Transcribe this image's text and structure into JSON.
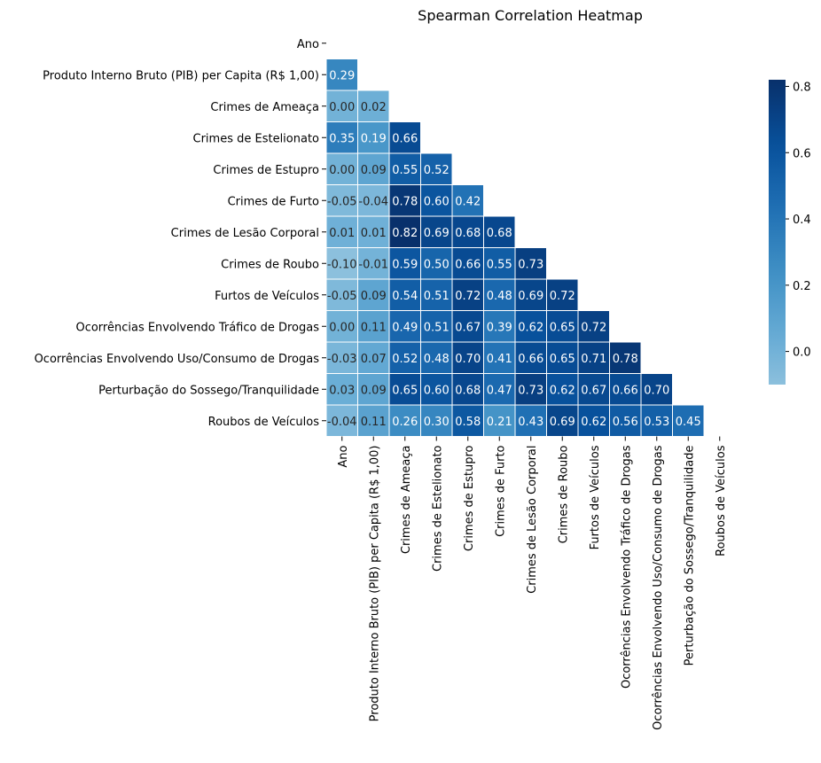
{
  "chart_data": {
    "type": "heatmap",
    "title": "Spearman Correlation Heatmap",
    "mask": "upper-triangle-including-diagonal",
    "variables": [
      "Ano",
      "Produto Interno Bruto (PIB) per Capita (R$ 1,00)",
      "Crimes de Ameaça",
      "Crimes de Estelionato",
      "Crimes de Estupro",
      "Crimes de Furto",
      "Crimes de Lesão Corporal",
      "Crimes de Roubo",
      "Furtos de Veículos",
      "Ocorrências Envolvendo Tráfico de Drogas",
      "Ocorrências Envolvendo Uso/Consumo de Drogas",
      "Perturbação do Sossego/Tranquilidade",
      "Roubos de Veículos"
    ],
    "row_labels": [
      "Ano",
      "Produto Interno Bruto (PIB) per Capita (R$ 1,00)",
      "Crimes de Ameaça ",
      "Crimes de Estelionato",
      "Crimes de Estupro ",
      "Crimes de Furto",
      "Crimes de Lesão Corporal",
      "Crimes de Roubo",
      "Furtos de Veículos",
      "Ocorrências Envolvendo Tráfico de Drogas",
      "Ocorrências Envolvendo Uso/Consumo de Drogas",
      "Perturbação do Sossego/Tranquilidade",
      "Roubos de Veículos"
    ],
    "values": [
      [],
      [
        0.29
      ],
      [
        0.0,
        0.02
      ],
      [
        0.35,
        0.19,
        0.66
      ],
      [
        0.0,
        0.09,
        0.55,
        0.52
      ],
      [
        -0.05,
        -0.04,
        0.78,
        0.6,
        0.42
      ],
      [
        0.01,
        0.01,
        0.82,
        0.69,
        0.68,
        0.68
      ],
      [
        -0.1,
        -0.01,
        0.59,
        0.5,
        0.66,
        0.55,
        0.73
      ],
      [
        -0.05,
        0.09,
        0.54,
        0.51,
        0.72,
        0.48,
        0.69,
        0.72
      ],
      [
        0.0,
        0.11,
        0.49,
        0.51,
        0.67,
        0.39,
        0.62,
        0.65,
        0.72
      ],
      [
        -0.03,
        0.07,
        0.52,
        0.48,
        0.7,
        0.41,
        0.66,
        0.65,
        0.71,
        0.78
      ],
      [
        0.03,
        0.09,
        0.65,
        0.6,
        0.68,
        0.47,
        0.73,
        0.62,
        0.67,
        0.66,
        0.7
      ],
      [
        -0.04,
        0.11,
        0.26,
        0.3,
        0.58,
        0.21,
        0.43,
        0.69,
        0.62,
        0.56,
        0.53,
        0.45
      ]
    ],
    "colormap": "Blues",
    "color_range": [
      -0.1,
      0.82
    ],
    "colorbar_ticks": [
      "0.0",
      "0.2",
      "0.4",
      "0.6",
      "0.8"
    ],
    "colorbar_tick_values": [
      0.0,
      0.2,
      0.4,
      0.6,
      0.8
    ],
    "cell_border_color": "#ffffff"
  }
}
